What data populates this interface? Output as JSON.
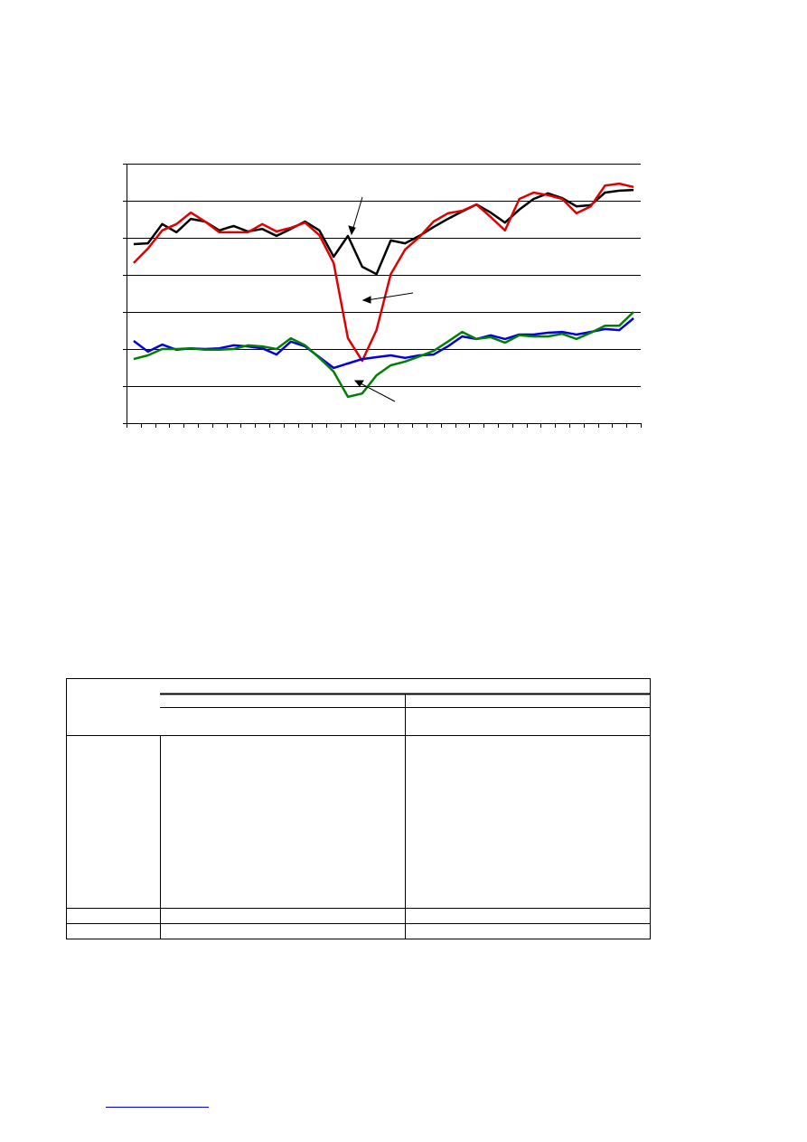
{
  "chart_data": {
    "type": "line",
    "categories": [
      null,
      null,
      null,
      null,
      null,
      null,
      null,
      null,
      null,
      null,
      null,
      null,
      null,
      null,
      null,
      null,
      null,
      null,
      null,
      null,
      null,
      null,
      null,
      null,
      null,
      null,
      null,
      null,
      null,
      null,
      null,
      null,
      null,
      null,
      null,
      null
    ],
    "series": [
      {
        "color": "#000000",
        "values": [
          4.83,
          4.85,
          5.37,
          5.15,
          5.51,
          5.44,
          5.2,
          5.32,
          5.17,
          5.24,
          5.05,
          5.24,
          5.44,
          5.2,
          4.49,
          5.05,
          4.22,
          4.02,
          4.93,
          4.85,
          5.05,
          5.29,
          5.51,
          5.71,
          5.9,
          5.68,
          5.41,
          5.76,
          6.05,
          6.2,
          6.07,
          5.85,
          5.88,
          6.22,
          6.27,
          6.29
        ]
      },
      {
        "color": "#e00000",
        "values": [
          4.32,
          4.71,
          5.2,
          5.37,
          5.68,
          5.44,
          5.15,
          5.15,
          5.15,
          5.37,
          5.17,
          5.27,
          5.41,
          5.07,
          4.32,
          2.29,
          1.68,
          2.51,
          4.02,
          4.68,
          5.02,
          5.44,
          5.66,
          5.73,
          5.9,
          5.56,
          5.2,
          6.05,
          6.22,
          6.15,
          6.05,
          5.66,
          5.85,
          6.41,
          6.46,
          6.37
        ]
      },
      {
        "color": "#0000e0",
        "values": [
          2.22,
          1.93,
          2.12,
          1.98,
          2.02,
          2.0,
          2.02,
          2.1,
          2.07,
          2.02,
          1.85,
          2.2,
          2.07,
          1.78,
          1.49,
          1.61,
          1.73,
          1.78,
          1.83,
          1.76,
          1.83,
          1.85,
          2.07,
          2.34,
          2.27,
          2.37,
          2.27,
          2.39,
          2.39,
          2.44,
          2.46,
          2.39,
          2.46,
          2.54,
          2.51,
          2.83
        ]
      },
      {
        "color": "#008000",
        "values": [
          1.73,
          1.83,
          2.0,
          2.0,
          2.02,
          1.98,
          1.98,
          2.0,
          2.1,
          2.07,
          2.0,
          2.29,
          2.1,
          1.76,
          1.39,
          0.71,
          0.8,
          1.29,
          1.56,
          1.66,
          1.8,
          1.95,
          2.2,
          2.46,
          2.27,
          2.32,
          2.17,
          2.37,
          2.34,
          2.34,
          2.41,
          2.27,
          2.44,
          2.63,
          2.63,
          3.0
        ]
      }
    ],
    "ylim": [
      0,
      7
    ],
    "yticks": [
      0,
      1,
      2,
      3,
      4,
      5,
      6,
      7
    ],
    "grid": true
  }
}
